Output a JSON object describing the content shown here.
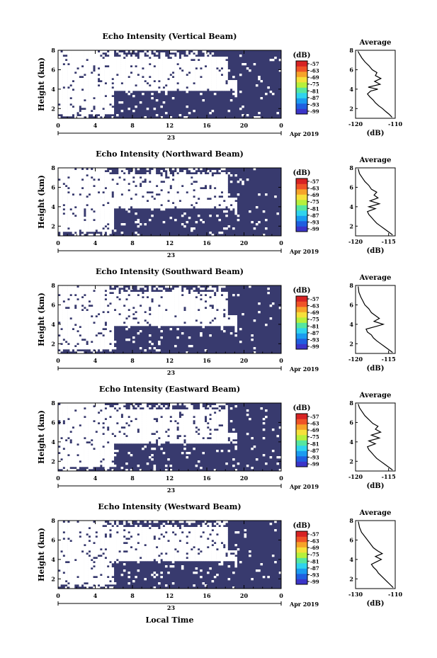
{
  "figure": {
    "xlabel_bottom": "Local Time",
    "date_label": "Apr 2019",
    "day_label": "23",
    "colorbar_unit": "(dB)",
    "colorbar_ticks": [
      "-57",
      "-63",
      "-69",
      "-75",
      "-81",
      "-87",
      "-93",
      "-99"
    ],
    "colorbar_colors": [
      "#3b35c8",
      "#1f5fe0",
      "#1a9bf0",
      "#2fd3ee",
      "#55e6a0",
      "#b6f03c",
      "#f6e03a",
      "#f6a329",
      "#ef5327",
      "#d72323"
    ],
    "background_color": "#383a6e",
    "no_data_color": "#ffffff"
  },
  "chart_data": [
    {
      "type": "heatmap",
      "title": "Echo Intensity (Vertical Beam)",
      "ylabel": "Height (km)",
      "x_ticks": [
        "0",
        "4",
        "8",
        "12",
        "16",
        "20",
        "0"
      ],
      "y_ticks": [
        "2",
        "4",
        "6",
        "8"
      ],
      "xlim": [
        0,
        24
      ],
      "ylim": [
        1,
        8
      ],
      "profile": {
        "title": "Average",
        "xlabel": "(dB)",
        "x_ticks": [
          "-120",
          "-110"
        ],
        "y_ticks": [
          "2",
          "4",
          "6",
          "8"
        ],
        "xlim": [
          -120,
          -110
        ],
        "ylim": [
          1,
          8
        ],
        "points": [
          [
            -110.8,
            1.1
          ],
          [
            -111.5,
            1.4
          ],
          [
            -112.4,
            1.7
          ],
          [
            -113.2,
            2.0
          ],
          [
            -114.2,
            2.3
          ],
          [
            -115.0,
            2.6
          ],
          [
            -115.6,
            2.9
          ],
          [
            -116.4,
            3.2
          ],
          [
            -117.0,
            3.5
          ],
          [
            -116.2,
            3.8
          ],
          [
            -114.4,
            4.0
          ],
          [
            -116.8,
            4.2
          ],
          [
            -113.8,
            4.5
          ],
          [
            -115.2,
            4.8
          ],
          [
            -113.6,
            5.1
          ],
          [
            -115.0,
            5.4
          ],
          [
            -114.6,
            5.7
          ],
          [
            -115.8,
            6.0
          ],
          [
            -116.6,
            6.4
          ],
          [
            -117.6,
            6.8
          ],
          [
            -118.4,
            7.2
          ],
          [
            -119.0,
            7.6
          ],
          [
            -119.4,
            7.9
          ]
        ]
      }
    },
    {
      "type": "heatmap",
      "title": "Echo Intensity (Northward Beam)",
      "ylabel": "Height (km)",
      "x_ticks": [
        "0",
        "4",
        "8",
        "12",
        "16",
        "20",
        "0"
      ],
      "y_ticks": [
        "2",
        "4",
        "6",
        "8"
      ],
      "xlim": [
        0,
        24
      ],
      "ylim": [
        1,
        8
      ],
      "profile": {
        "title": "Average",
        "xlabel": "(dB)",
        "x_ticks": [
          "-120",
          "-115"
        ],
        "y_ticks": [
          "2",
          "4",
          "6",
          "8"
        ],
        "xlim": [
          -120,
          -114
        ],
        "ylim": [
          1,
          8
        ],
        "points": [
          [
            -114.4,
            1.1
          ],
          [
            -115.0,
            1.4
          ],
          [
            -115.6,
            1.7
          ],
          [
            -116.2,
            2.0
          ],
          [
            -116.8,
            2.3
          ],
          [
            -117.2,
            2.6
          ],
          [
            -117.6,
            2.9
          ],
          [
            -118.0,
            3.2
          ],
          [
            -118.2,
            3.5
          ],
          [
            -117.0,
            3.8
          ],
          [
            -118.0,
            4.0
          ],
          [
            -116.4,
            4.3
          ],
          [
            -117.8,
            4.6
          ],
          [
            -116.6,
            4.9
          ],
          [
            -117.2,
            5.2
          ],
          [
            -116.8,
            5.5
          ],
          [
            -117.6,
            5.8
          ],
          [
            -118.0,
            6.2
          ],
          [
            -118.6,
            6.6
          ],
          [
            -119.0,
            7.0
          ],
          [
            -119.4,
            7.4
          ],
          [
            -119.6,
            7.9
          ]
        ]
      }
    },
    {
      "type": "heatmap",
      "title": "Echo Intensity (Southward Beam)",
      "ylabel": "Height (km)",
      "x_ticks": [
        "0",
        "4",
        "8",
        "12",
        "16",
        "20",
        "0"
      ],
      "y_ticks": [
        "2",
        "4",
        "6",
        "8"
      ],
      "xlim": [
        0,
        24
      ],
      "ylim": [
        1,
        8
      ],
      "profile": {
        "title": "Average",
        "xlabel": "(dB)",
        "x_ticks": [
          "-120",
          "-115"
        ],
        "y_ticks": [
          "2",
          "4",
          "6",
          "8"
        ],
        "xlim": [
          -120,
          -114
        ],
        "ylim": [
          1,
          8
        ],
        "points": [
          [
            -114.4,
            1.1
          ],
          [
            -115.0,
            1.4
          ],
          [
            -115.6,
            1.7
          ],
          [
            -116.2,
            2.0
          ],
          [
            -116.8,
            2.3
          ],
          [
            -117.3,
            2.6
          ],
          [
            -117.6,
            2.9
          ],
          [
            -118.2,
            3.2
          ],
          [
            -118.4,
            3.5
          ],
          [
            -116.8,
            3.8
          ],
          [
            -115.8,
            4.0
          ],
          [
            -117.2,
            4.3
          ],
          [
            -116.4,
            4.6
          ],
          [
            -117.0,
            4.9
          ],
          [
            -117.6,
            5.2
          ],
          [
            -118.0,
            5.6
          ],
          [
            -118.6,
            6.0
          ],
          [
            -118.9,
            6.4
          ],
          [
            -119.2,
            6.8
          ],
          [
            -119.5,
            7.3
          ],
          [
            -119.6,
            7.9
          ]
        ]
      }
    },
    {
      "type": "heatmap",
      "title": "Echo Intensity (Eastward Beam)",
      "ylabel": "Height (km)",
      "x_ticks": [
        "0",
        "4",
        "8",
        "12",
        "16",
        "20",
        "0"
      ],
      "y_ticks": [
        "2",
        "4",
        "6",
        "8"
      ],
      "xlim": [
        0,
        24
      ],
      "ylim": [
        1,
        8
      ],
      "profile": {
        "title": "Average",
        "xlabel": "(dB)",
        "x_ticks": [
          "-120",
          "-115"
        ],
        "y_ticks": [
          "2",
          "4",
          "6",
          "8"
        ],
        "xlim": [
          -120,
          -114
        ],
        "ylim": [
          1,
          8
        ],
        "points": [
          [
            -114.4,
            1.1
          ],
          [
            -115.0,
            1.4
          ],
          [
            -115.6,
            1.7
          ],
          [
            -116.2,
            2.0
          ],
          [
            -116.8,
            2.3
          ],
          [
            -117.2,
            2.6
          ],
          [
            -117.6,
            2.9
          ],
          [
            -118.0,
            3.2
          ],
          [
            -118.2,
            3.5
          ],
          [
            -117.0,
            3.8
          ],
          [
            -118.0,
            4.1
          ],
          [
            -116.4,
            4.4
          ],
          [
            -117.6,
            4.7
          ],
          [
            -116.2,
            5.0
          ],
          [
            -117.0,
            5.3
          ],
          [
            -116.6,
            5.6
          ],
          [
            -117.4,
            5.9
          ],
          [
            -118.0,
            6.3
          ],
          [
            -118.6,
            6.7
          ],
          [
            -119.0,
            7.1
          ],
          [
            -119.4,
            7.5
          ],
          [
            -119.6,
            7.9
          ]
        ]
      }
    },
    {
      "type": "heatmap",
      "title": "Echo Intensity (Westward Beam)",
      "ylabel": "Height (km)",
      "x_ticks": [
        "0",
        "4",
        "8",
        "12",
        "16",
        "20",
        "0"
      ],
      "y_ticks": [
        "2",
        "4",
        "6",
        "8"
      ],
      "xlim": [
        0,
        24
      ],
      "ylim": [
        1,
        8
      ],
      "profile": {
        "title": "Average",
        "xlabel": "(dB)",
        "x_ticks": [
          "-130",
          "-110"
        ],
        "y_ticks": [
          "2",
          "4",
          "6",
          "8"
        ],
        "xlim": [
          -130,
          -110
        ],
        "ylim": [
          1,
          8
        ],
        "points": [
          [
            -111.0,
            1.1
          ],
          [
            -112.5,
            1.4
          ],
          [
            -114.0,
            1.7
          ],
          [
            -115.5,
            2.0
          ],
          [
            -117.0,
            2.3
          ],
          [
            -118.5,
            2.6
          ],
          [
            -119.5,
            2.9
          ],
          [
            -121.0,
            3.2
          ],
          [
            -122.0,
            3.5
          ],
          [
            -119.0,
            3.8
          ],
          [
            -117.0,
            4.0
          ],
          [
            -120.0,
            4.3
          ],
          [
            -116.5,
            4.6
          ],
          [
            -119.0,
            4.9
          ],
          [
            -121.0,
            5.2
          ],
          [
            -122.5,
            5.6
          ],
          [
            -124.0,
            6.0
          ],
          [
            -125.5,
            6.4
          ],
          [
            -127.0,
            6.8
          ],
          [
            -128.0,
            7.3
          ],
          [
            -128.6,
            7.9
          ]
        ]
      }
    }
  ]
}
